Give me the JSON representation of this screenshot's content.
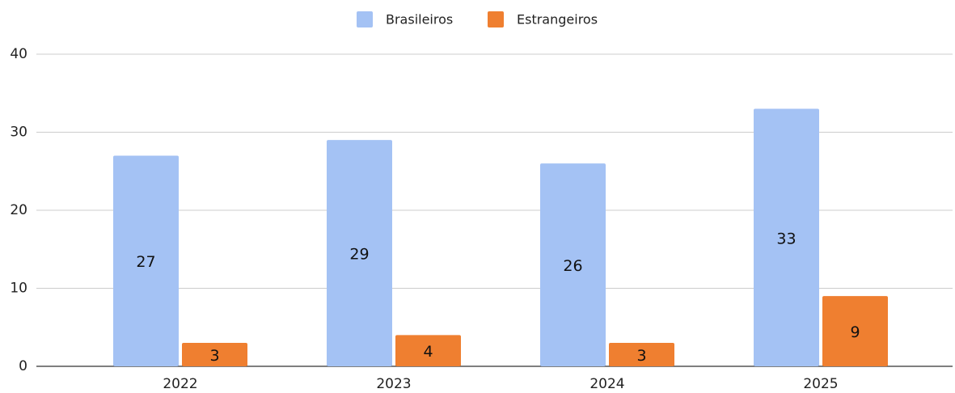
{
  "chart_data": {
    "type": "bar",
    "categories": [
      "2022",
      "2023",
      "2024",
      "2025"
    ],
    "series": [
      {
        "name": "Brasileiros",
        "color": "#a4c2f4",
        "values": [
          27,
          29,
          26,
          33
        ]
      },
      {
        "name": "Estrangeiros",
        "color": "#ef7f30",
        "values": [
          3,
          4,
          3,
          9
        ]
      }
    ],
    "ylim": [
      0,
      40
    ],
    "yticks": [
      0,
      10,
      20,
      30,
      40
    ],
    "grid": true,
    "legend": "top"
  }
}
